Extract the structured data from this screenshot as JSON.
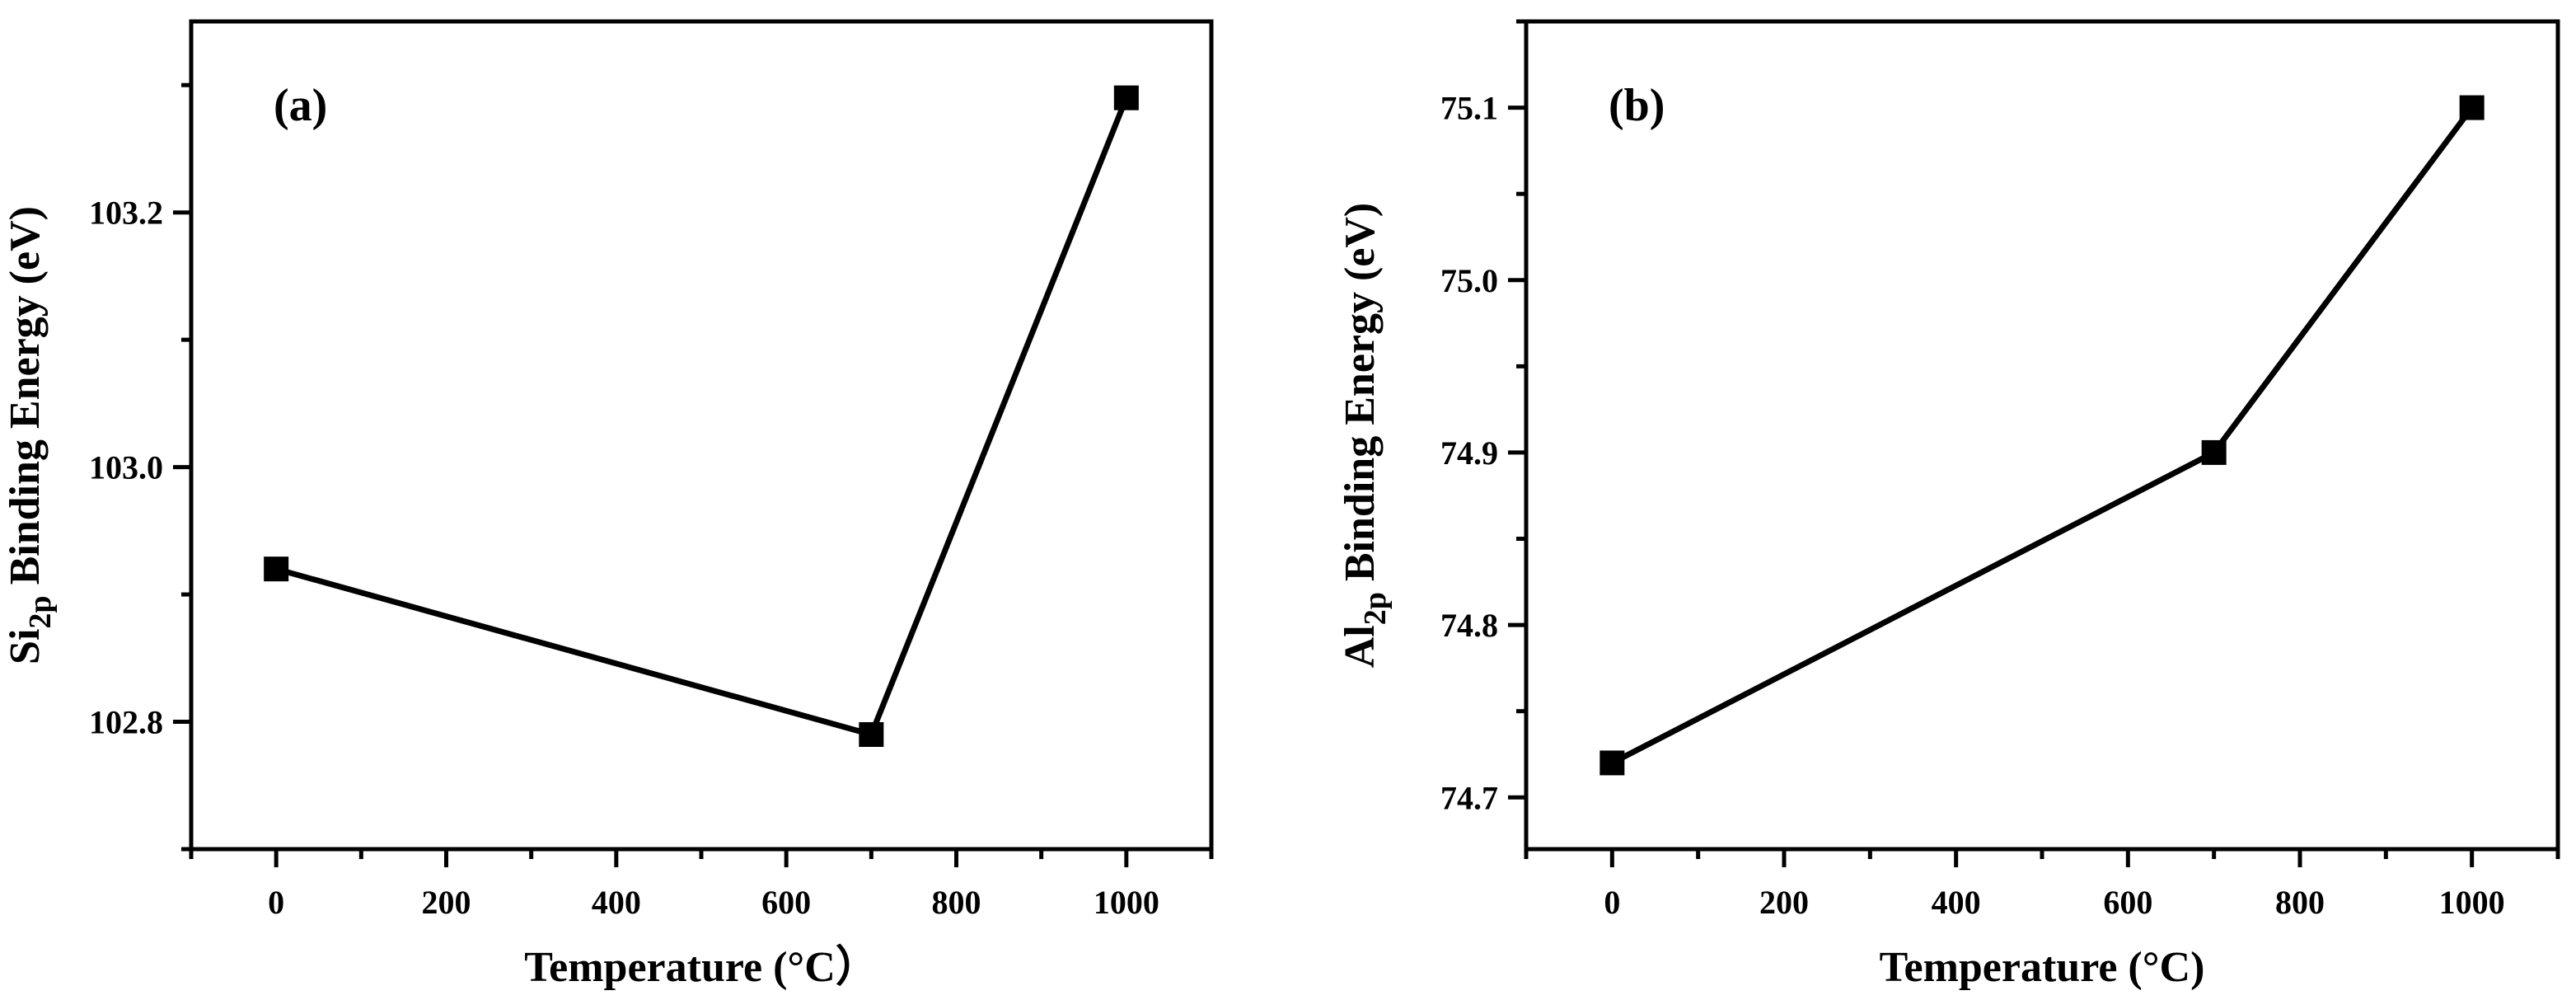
{
  "chart_data": [
    {
      "type": "line",
      "panel_label": "(a)",
      "x": [
        0,
        700,
        1000
      ],
      "values": [
        102.92,
        102.79,
        103.29
      ],
      "xlabel": "Temperature (°C）",
      "ylabel_prefix": "Si",
      "ylabel_sub": "2p",
      "ylabel_suffix": " Binding Energy (eV)",
      "xlim": [
        -100,
        1100
      ],
      "ylim": [
        102.7,
        103.35
      ],
      "xticks": [
        0,
        200,
        400,
        600,
        800,
        1000
      ],
      "yticks": [
        102.8,
        103.0,
        103.2
      ],
      "xtick_labels": [
        "0",
        "200",
        "400",
        "600",
        "800",
        "1000"
      ],
      "ytick_labels": [
        "102.8",
        "103.0",
        "103.2"
      ],
      "marker": "square",
      "color": "#000000"
    },
    {
      "type": "line",
      "panel_label": "(b)",
      "x": [
        0,
        700,
        1000
      ],
      "values": [
        74.72,
        74.9,
        75.1
      ],
      "xlabel": "Temperature (°C)",
      "ylabel_prefix": "Al",
      "ylabel_sub": "2p",
      "ylabel_suffix": " Binding Energy (eV)",
      "xlim": [
        -100,
        1100
      ],
      "ylim": [
        74.67,
        75.15
      ],
      "xticks": [
        0,
        200,
        400,
        600,
        800,
        1000
      ],
      "yticks": [
        74.7,
        74.8,
        74.9,
        75.0,
        75.1
      ],
      "xtick_labels": [
        "0",
        "200",
        "400",
        "600",
        "800",
        "1000"
      ],
      "ytick_labels": [
        "74.7",
        "74.8",
        "74.9",
        "75.0",
        "75.1"
      ],
      "marker": "square",
      "color": "#000000"
    }
  ]
}
